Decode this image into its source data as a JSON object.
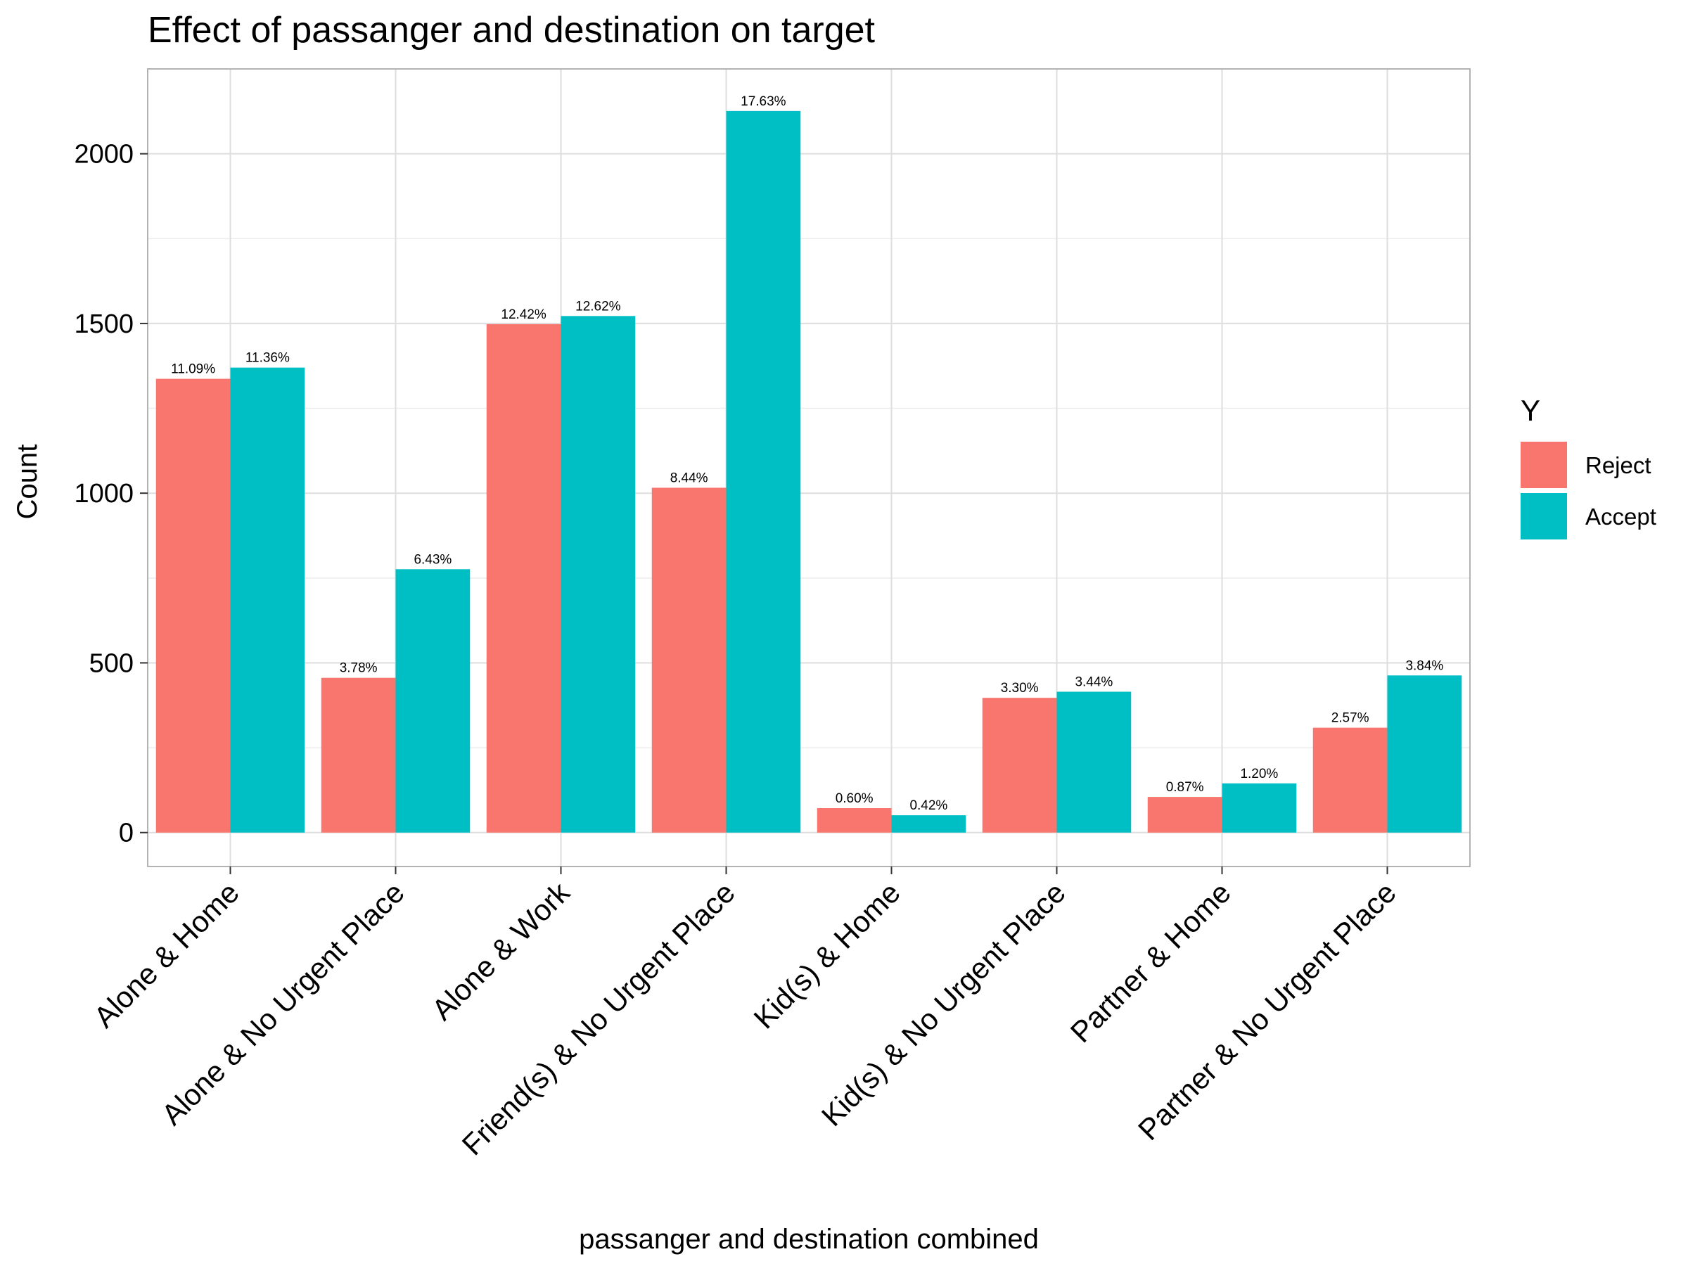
{
  "chart_data": {
    "type": "bar",
    "title": "Effect of passanger and destination on target",
    "xlabel": "passanger and destination combined",
    "ylabel": "Count",
    "ylim": [
      -100,
      2250
    ],
    "yticks": [
      0,
      500,
      1000,
      1500,
      2000
    ],
    "grid": true,
    "legend": {
      "title": "Y",
      "position": "right"
    },
    "categories": [
      "Alone & Home",
      "Alone & No Urgent Place",
      "Alone & Work",
      "Friend(s) & No Urgent Place",
      "Kid(s) & Home",
      "Kid(s) & No Urgent Place",
      "Partner & Home",
      "Partner & No Urgent Place"
    ],
    "series": [
      {
        "name": "Reject",
        "color": "#F8766D",
        "values": [
          1337,
          456,
          1498,
          1016,
          72,
          397,
          105,
          309
        ],
        "labels": [
          "11.09%",
          "3.78%",
          "12.42%",
          "8.44%",
          "0.60%",
          "3.30%",
          "0.87%",
          "2.57%"
        ]
      },
      {
        "name": "Accept",
        "color": "#00BFC4",
        "values": [
          1370,
          776,
          1522,
          2126,
          51,
          415,
          145,
          463
        ],
        "labels": [
          "11.36%",
          "6.43%",
          "12.62%",
          "17.63%",
          "0.42%",
          "3.44%",
          "1.20%",
          "3.84%"
        ]
      }
    ]
  }
}
